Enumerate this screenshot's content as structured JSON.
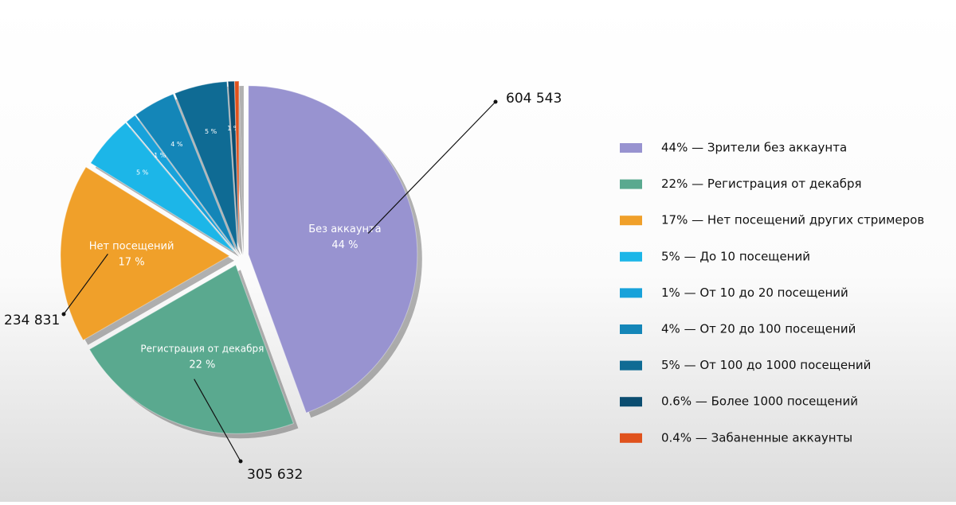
{
  "chart_data": {
    "type": "pie",
    "categories": [
      "44% — Зрители без аккаунта",
      "22% — Регистрация от декабря",
      "17% — Нет посещений других стримеров",
      "5% — До 10 посещений",
      "1% — От 10 до 20 посещений",
      "4% — От 20 до 100 посещений",
      "5% — От 100 до 1000 посещений",
      "0.6% — Более 1000 посещений",
      "0.4% — Забаненные аккаунты"
    ],
    "values": [
      44,
      22,
      17,
      5,
      1,
      4,
      5,
      0.6,
      0.4
    ],
    "colors": [
      "#9893d0",
      "#5aa98f",
      "#f0a02a",
      "#1cb6e8",
      "#18a2da",
      "#1486b8",
      "#0f6b94",
      "#0b4d70",
      "#e0521c"
    ],
    "slice_labels": [
      "Без аккаунта",
      "Регистрация от декабря",
      "Нет посещений",
      null,
      null,
      null,
      null,
      null,
      null
    ],
    "value_labels": [
      "44 %",
      "22 %",
      "17 %",
      "5 %",
      "1 %",
      "4 %",
      "5 %",
      "1 %",
      null
    ],
    "counts": [
      604543,
      305632,
      234831,
      null,
      null,
      null,
      null,
      null,
      null
    ],
    "count_labels": [
      "604 543",
      "305 632",
      "234 831",
      null,
      null,
      null,
      null,
      null,
      null
    ]
  }
}
